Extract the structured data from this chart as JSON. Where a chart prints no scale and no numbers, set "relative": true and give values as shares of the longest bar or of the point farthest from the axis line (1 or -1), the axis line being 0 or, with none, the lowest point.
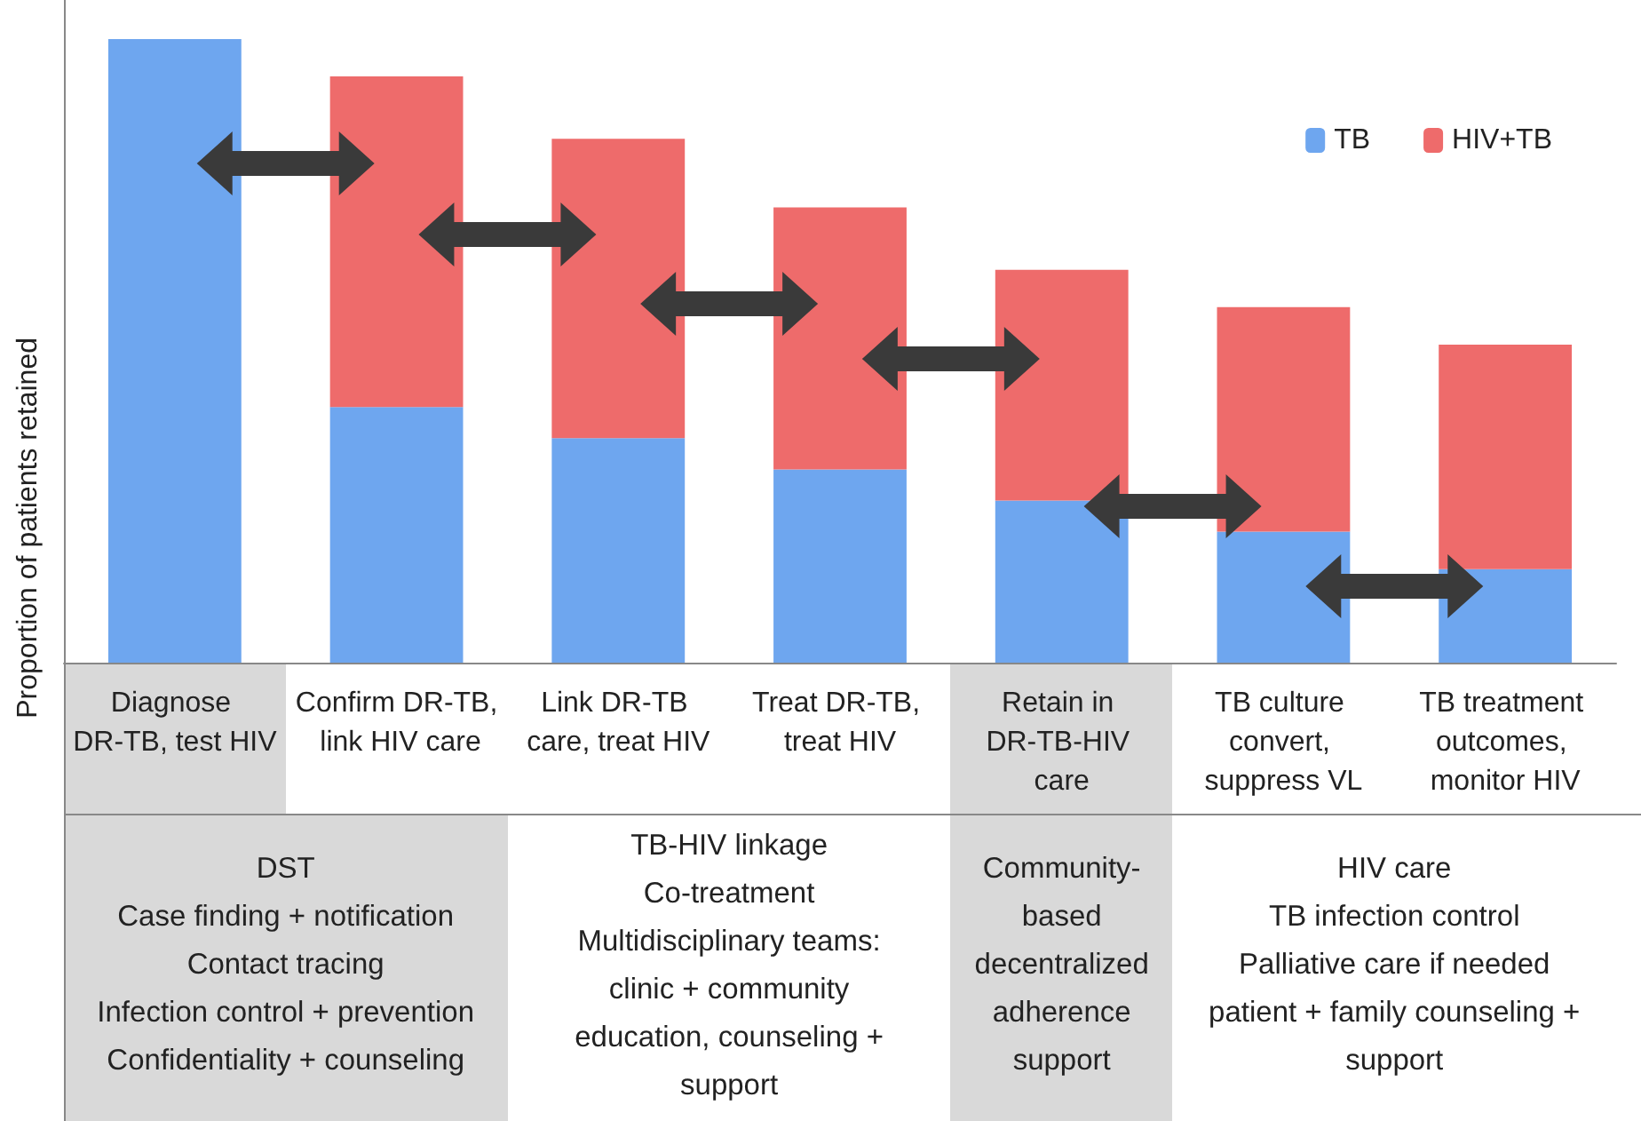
{
  "chart_data": {
    "type": "bar",
    "stacked": true,
    "relative": true,
    "ylabel": "Proportion of patients retained",
    "categories": [
      "Diagnose DR-TB, test HIV",
      "Confirm DR-TB, link HIV care",
      "Link DR-TB care, treat HIV",
      "Treat DR-TB, treat HIV",
      "Retain in DR-TB-HIV care",
      "TB culture convert, suppress VL",
      "TB treatment outcomes, monitor HIV"
    ],
    "series": [
      {
        "name": "TB",
        "color": "#6ea6ef",
        "values": [
          1,
          0.41,
          0.36,
          0.31,
          0.26,
          0.21,
          0.15
        ]
      },
      {
        "name": "HIV+TB",
        "color": "#ee6b6b",
        "values": [
          0,
          0.53,
          0.48,
          0.42,
          0.37,
          0.36,
          0.36
        ]
      }
    ],
    "legend": "top right",
    "annotations": [
      "DST\nCase finding + notification\nContact tracing\nInfection control + prevention\nConfidentiality + counseling",
      "TB-HIV linkage\nCo-treatment\nMultidisciplinary teams:\nclinic + community\neducation, counseling + support",
      "Community-based decentralized adherence support",
      "HIV care\nTB infection control\nPalliative care if needed\npatient + family counseling + support"
    ]
  }
}
